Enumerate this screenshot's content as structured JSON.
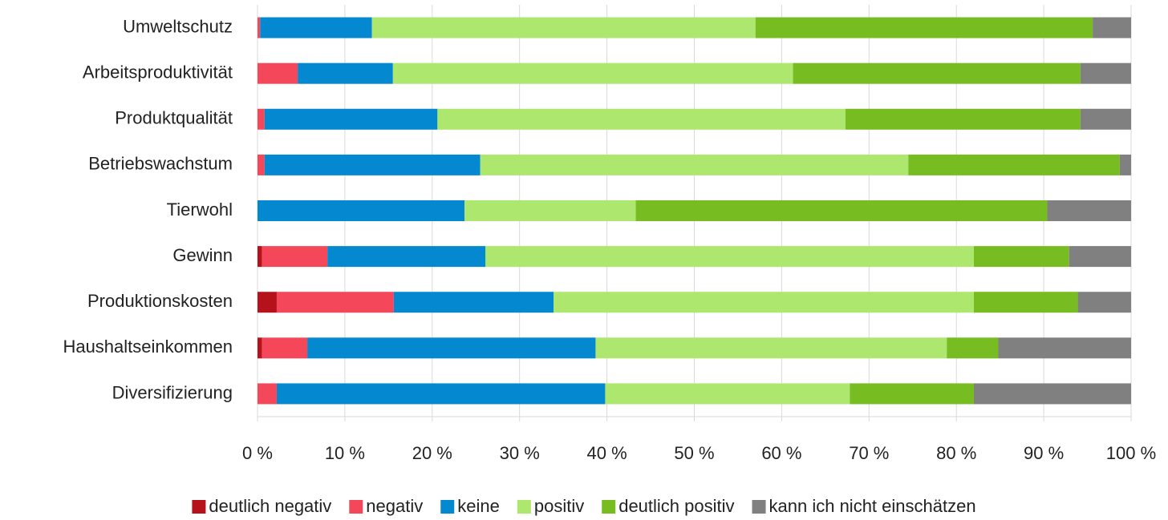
{
  "chart_data": {
    "type": "stacked-bar-horizontal",
    "categories": [
      "Umweltschutz",
      "Arbeitsproduktivität",
      "Produktqualität",
      "Betriebswachstum",
      "Tierwohl",
      "Gewinn",
      "Produktionskosten",
      "Haushaltseinkommen",
      "Diversifizierung"
    ],
    "series": [
      {
        "name": "deutlich negativ",
        "color": "#b5121b",
        "values": [
          0,
          0,
          0,
          0,
          0,
          0.5,
          2.2,
          0.5,
          0
        ]
      },
      {
        "name": "negativ",
        "color": "#f4485a",
        "values": [
          0.3,
          4.6,
          0.8,
          0.8,
          0,
          7.5,
          13.4,
          5.2,
          2.2
        ]
      },
      {
        "name": "keine",
        "color": "#0489d1",
        "values": [
          12.8,
          10.9,
          19.8,
          24.7,
          23.7,
          18.1,
          18.3,
          33.0,
          37.6
        ]
      },
      {
        "name": "positiv",
        "color": "#aee76e",
        "values": [
          43.9,
          45.8,
          46.7,
          49.0,
          19.6,
          55.9,
          48.1,
          40.2,
          28.0
        ]
      },
      {
        "name": "deutlich positiv",
        "color": "#77bd22",
        "values": [
          38.6,
          32.9,
          26.9,
          24.2,
          47.1,
          10.9,
          11.9,
          5.9,
          14.2
        ]
      },
      {
        "name": "kann ich nicht einschätzen",
        "color": "#808080",
        "values": [
          4.4,
          5.8,
          5.8,
          1.3,
          9.6,
          7.1,
          6.1,
          15.2,
          18.0
        ]
      }
    ],
    "xlim": [
      0,
      100
    ],
    "xticks": [
      {
        "value": 0,
        "label": "0 %"
      },
      {
        "value": 10,
        "label": "10 %"
      },
      {
        "value": 20,
        "label": "20 %"
      },
      {
        "value": 30,
        "label": "30 %"
      },
      {
        "value": 40,
        "label": "40 %"
      },
      {
        "value": 50,
        "label": "50 %"
      },
      {
        "value": 60,
        "label": "60 %"
      },
      {
        "value": 70,
        "label": "70 %"
      },
      {
        "value": 80,
        "label": "80 %"
      },
      {
        "value": 90,
        "label": "90 %"
      },
      {
        "value": 100,
        "label": "100 %"
      }
    ],
    "grid": true,
    "legend": "bottom"
  }
}
